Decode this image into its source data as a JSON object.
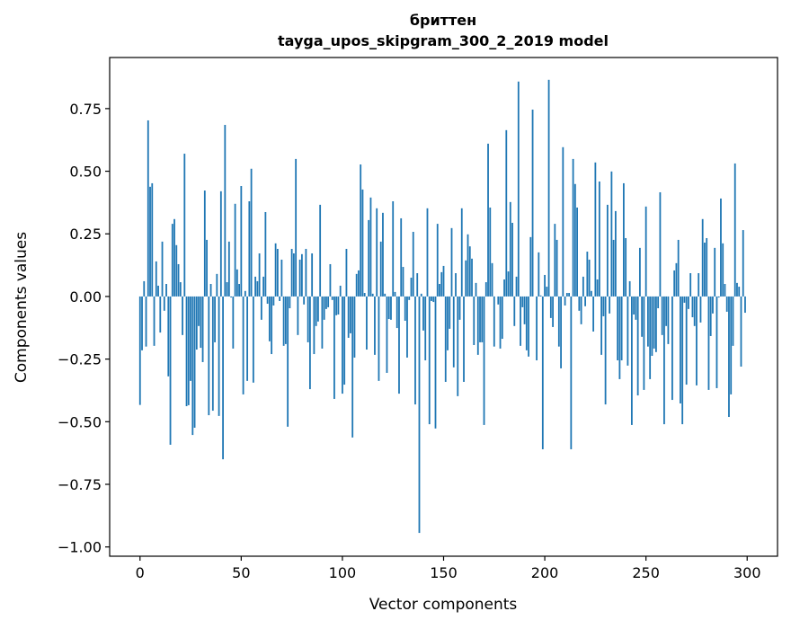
{
  "chart_data": {
    "type": "bar",
    "title": [
      "бриттен",
      "tayga_upos_skipgram_300_2_2019 model"
    ],
    "xlabel": "Vector components",
    "ylabel": "Components values",
    "xlim": [
      -15,
      315
    ],
    "ylim": [
      -1.037,
      0.954
    ],
    "xticks": [
      0,
      50,
      100,
      150,
      200,
      250,
      300
    ],
    "xtick_labels": [
      "0",
      "50",
      "100",
      "150",
      "200",
      "250",
      "300"
    ],
    "yticks": [
      0.75,
      0.5,
      0.25,
      0,
      -0.25,
      -0.5,
      -0.75,
      -1.0
    ],
    "ytick_labels": [
      "0.75",
      "0.50",
      "0.25",
      "0.00",
      "−0.25",
      "−0.50",
      "−0.75",
      "−1.00"
    ],
    "grid": false,
    "bar_color": "#1f77b4",
    "values": [
      -0.433,
      -0.215,
      0.061,
      -0.2,
      0.703,
      0.438,
      0.452,
      -0.197,
      0.14,
      0.043,
      -0.144,
      0.219,
      -0.057,
      0.05,
      -0.319,
      -0.592,
      0.29,
      0.309,
      0.205,
      0.129,
      0.057,
      -0.154,
      0.57,
      -0.438,
      -0.434,
      -0.337,
      -0.553,
      -0.524,
      -0.212,
      -0.118,
      -0.205,
      -0.262,
      0.423,
      0.226,
      -0.474,
      0.05,
      -0.456,
      -0.183,
      0.09,
      -0.477,
      0.42,
      -0.65,
      0.685,
      0.057,
      0.219,
      -0.004,
      -0.208,
      0.37,
      0.108,
      0.05,
      0.441,
      -0.391,
      0.022,
      -0.337,
      0.38,
      0.51,
      -0.344,
      0.079,
      0.061,
      0.172,
      -0.093,
      0.079,
      0.337,
      -0.029,
      -0.179,
      -0.23,
      -0.036,
      0.212,
      0.19,
      -0.018,
      0.147,
      -0.197,
      -0.19,
      -0.52,
      -0.047,
      0.19,
      0.172,
      0.549,
      -0.154,
      0.147,
      0.169,
      -0.032,
      0.19,
      -0.183,
      -0.37,
      0.172,
      -0.23,
      -0.118,
      -0.1,
      0.366,
      -0.208,
      -0.093,
      -0.05,
      -0.043,
      0.129,
      -0.014,
      -0.409,
      -0.075,
      -0.072,
      0.043,
      -0.388,
      -0.352,
      0.19,
      -0.165,
      -0.147,
      -0.563,
      -0.244,
      0.09,
      0.104,
      0.527,
      0.427,
      0.014,
      -0.212,
      0.305,
      0.395,
      0.011,
      -0.233,
      0.352,
      -0.337,
      0.219,
      0.334,
      0.011,
      -0.305,
      -0.09,
      -0.093,
      0.38,
      0.018,
      -0.126,
      -0.388,
      0.312,
      0.118,
      -0.097,
      -0.244,
      -0.014,
      0.075,
      0.258,
      -0.431,
      0.093,
      -0.944,
      0.011,
      -0.136,
      -0.255,
      0.352,
      -0.51,
      -0.018,
      -0.022,
      -0.527,
      0.29,
      0.05,
      0.097,
      0.122,
      -0.341,
      -0.215,
      -0.129,
      0.273,
      -0.283,
      0.093,
      -0.398,
      -0.093,
      0.352,
      -0.341,
      0.144,
      0.248,
      0.2,
      0.151,
      -0.194,
      0.054,
      -0.233,
      -0.183,
      -0.183,
      -0.513,
      0.057,
      0.61,
      0.355,
      0.133,
      -0.2,
      0.0,
      -0.032,
      -0.208,
      -0.169,
      0.068,
      0.664,
      0.1,
      0.377,
      0.294,
      -0.118,
      0.079,
      0.858,
      -0.197,
      -0.043,
      -0.111,
      -0.215,
      -0.24,
      0.237,
      0.746,
      0.0,
      -0.255,
      0.176,
      0.004,
      -0.61,
      0.086,
      0.039,
      0.865,
      -0.086,
      -0.122,
      0.29,
      0.226,
      -0.2,
      -0.287,
      0.596,
      -0.036,
      0.014,
      0.014,
      -0.61,
      0.549,
      0.449,
      0.355,
      -0.057,
      -0.111,
      0.079,
      -0.039,
      0.179,
      0.147,
      0.022,
      -0.14,
      0.535,
      0.068,
      0.459,
      -0.233,
      -0.079,
      -0.431,
      0.366,
      -0.068,
      0.499,
      0.226,
      0.341,
      -0.255,
      -0.33,
      -0.255,
      0.452,
      0.233,
      -0.276,
      0.061,
      -0.513,
      -0.072,
      -0.093,
      -0.395,
      0.194,
      -0.161,
      -0.373,
      0.359,
      -0.2,
      -0.33,
      -0.237,
      -0.208,
      -0.222,
      -0.047,
      0.416,
      -0.154,
      -0.51,
      -0.118,
      -0.19,
      0.0,
      -0.413,
      0.104,
      0.133,
      0.226,
      -0.427,
      -0.51,
      -0.025,
      -0.352,
      -0.05,
      0.093,
      -0.083,
      -0.118,
      -0.355,
      0.093,
      -0.104,
      0.309,
      0.215,
      0.233,
      -0.373,
      -0.158,
      -0.068,
      0.194,
      -0.366,
      -0.004,
      0.391,
      0.212,
      0.05,
      -0.061,
      -0.481,
      -0.391,
      -0.197,
      0.531,
      0.054,
      0.039,
      -0.28,
      0.265,
      -0.065
    ]
  }
}
